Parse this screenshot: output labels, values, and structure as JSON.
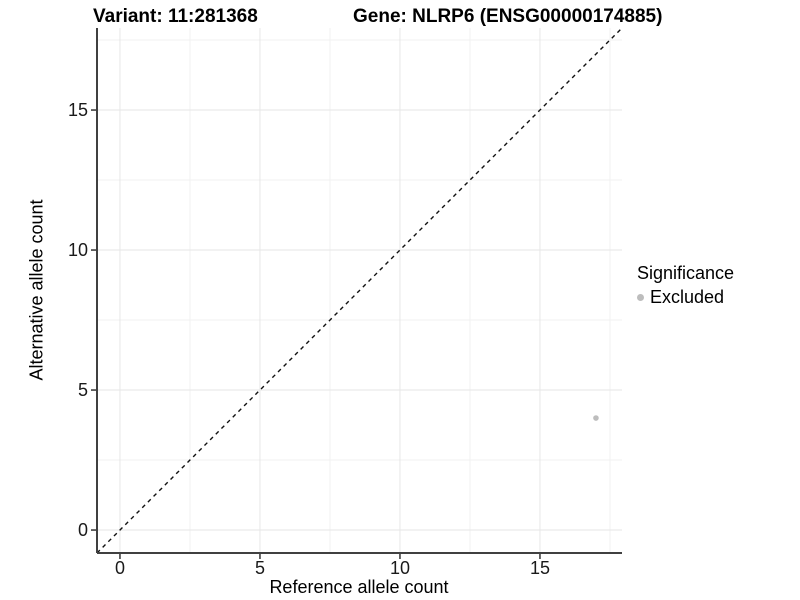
{
  "header": {
    "variant_title": "Variant: 11:281368",
    "gene_title": "Gene: NLRP6 (ENSG00000174885)"
  },
  "axes": {
    "x_title": "Reference allele count",
    "y_title": "Alternative allele count"
  },
  "legend": {
    "title": "Significance",
    "items": [
      {
        "label": "Excluded",
        "color": "#bdbdbd"
      }
    ]
  },
  "colors": {
    "background": "#ffffff",
    "grid_major": "#e6e6e6",
    "grid_minor": "#f1f1f1",
    "axis_line": "#404040",
    "tick_mark": "#333333",
    "text": "#000000",
    "reference_line": "#111111",
    "point": "#bdbdbd"
  },
  "chart_data": {
    "type": "scatter",
    "title": "Variant: 11:281368",
    "subtitle": "Gene: NLRP6 (ENSG00000174885)",
    "xlabel": "Reference allele count",
    "ylabel": "Alternative allele count",
    "xlim": [
      -0.82,
      17.93
    ],
    "ylim": [
      -0.82,
      17.93
    ],
    "x_ticks": [
      0,
      5,
      10,
      15
    ],
    "y_ticks": [
      0,
      5,
      10,
      15
    ],
    "x_minor_ticks": [
      2.5,
      7.5,
      12.5,
      17.5
    ],
    "y_minor_ticks": [
      2.5,
      7.5,
      12.5,
      17.5
    ],
    "grid": "major+minor",
    "legend_position": "right",
    "series": [
      {
        "name": "Excluded",
        "color": "#bdbdbd",
        "points": [
          {
            "x": 17,
            "y": 4
          }
        ]
      }
    ],
    "reference_line": {
      "slope": 1,
      "intercept": 0,
      "style": "dashed"
    }
  }
}
